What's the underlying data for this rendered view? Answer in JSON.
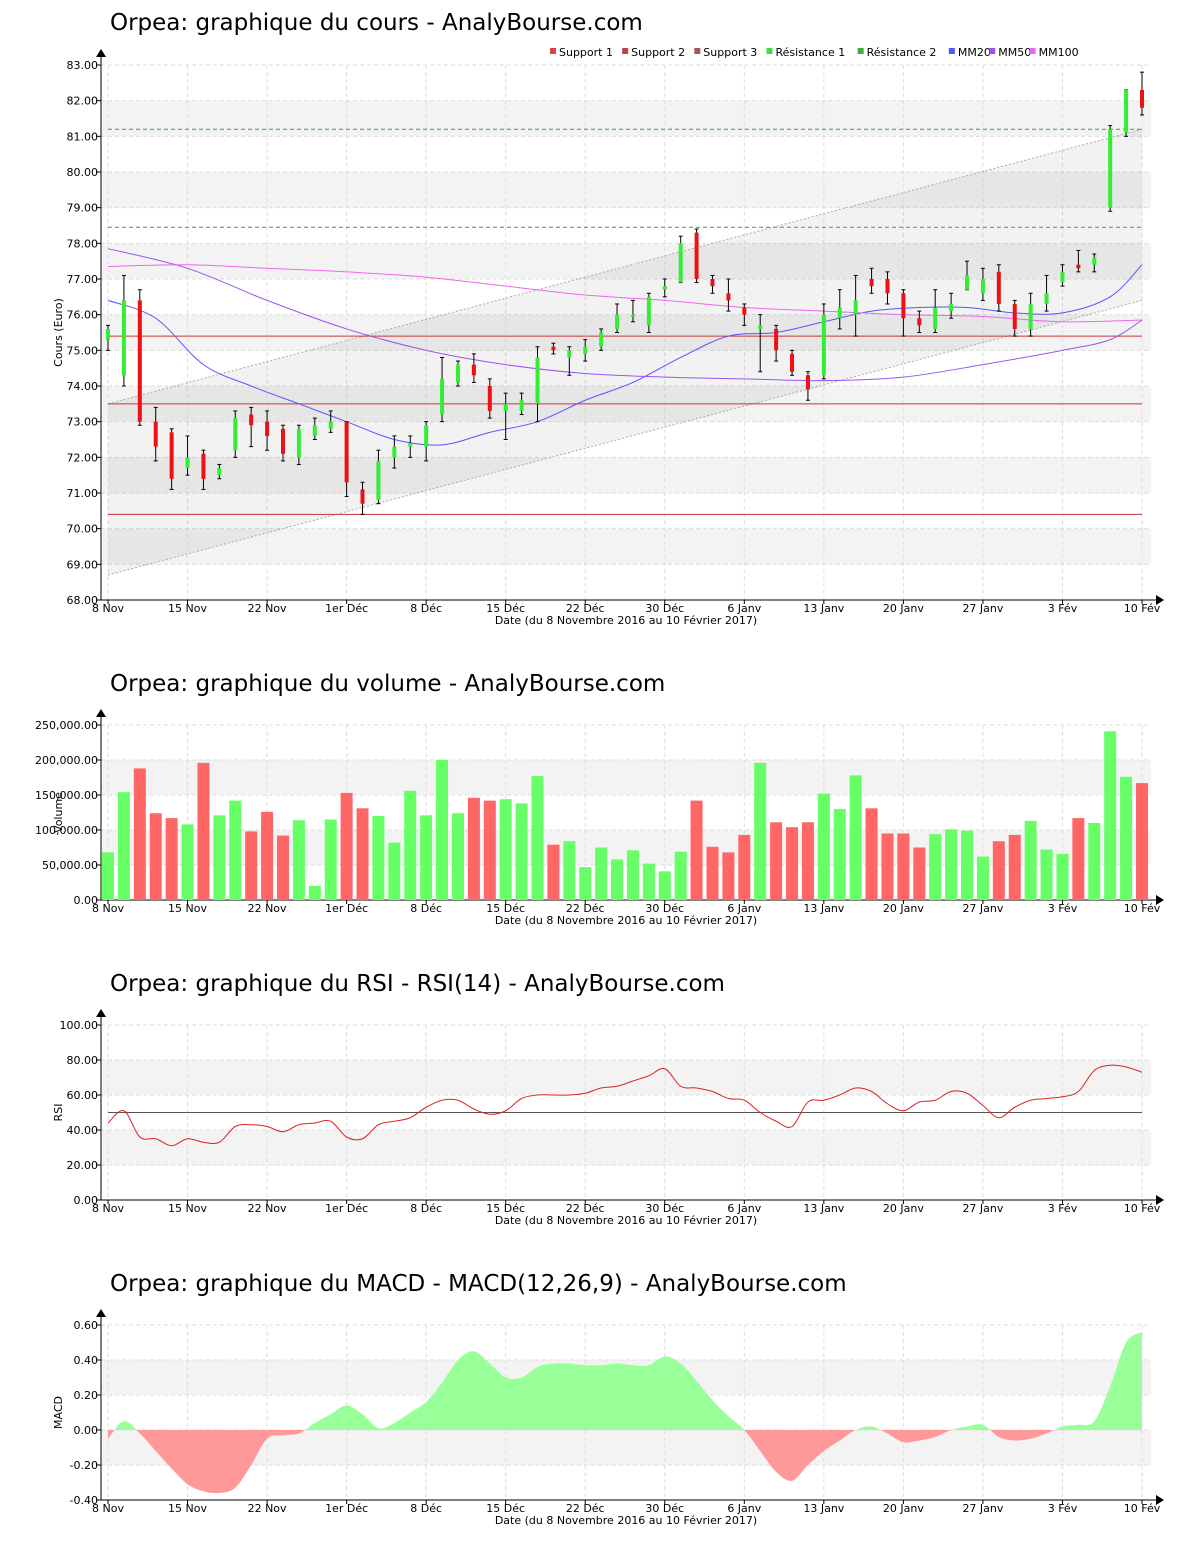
{
  "colors": {
    "up": "#33ee33",
    "down": "#ee1111",
    "vol_up": "#66ff66",
    "vol_down": "#ff6666",
    "support": "#cc3333",
    "resistance": "#33aa33",
    "mm20": "#5555ff",
    "mm50": "#9955ee",
    "mm100": "#ee66ee",
    "rsi": "#dd2222",
    "macd_pos": "#99ff99",
    "macd_neg": "#ff9999"
  },
  "date_axis": {
    "labels": [
      "8 Nov",
      "15 Nov",
      "22 Nov",
      "1er Déc",
      "8 Déc",
      "15 Déc",
      "22 Déc",
      "30 Déc",
      "6 Janv",
      "13 Janv",
      "20 Janv",
      "27 Janv",
      "3 Fév",
      "10 Fév"
    ],
    "label_index": [
      0,
      5,
      10,
      15,
      20,
      25,
      30,
      35,
      40,
      45,
      50,
      55,
      60,
      65
    ],
    "caption": "Date (du 8 Novembre 2016 au 10 Février 2017)",
    "dates": [
      "8 Nov",
      "9 Nov",
      "10 Nov",
      "11 Nov",
      "14 Nov",
      "15 Nov",
      "16 Nov",
      "17 Nov",
      "18 Nov",
      "21 Nov",
      "22 Nov",
      "23 Nov",
      "24 Nov",
      "25 Nov",
      "28 Nov",
      "1 Déc",
      "2 Déc",
      "5 Déc",
      "6 Déc",
      "7 Déc",
      "8 Déc",
      "9 Déc",
      "12 Déc",
      "13 Déc",
      "14 Déc",
      "15 Déc",
      "16 Déc",
      "19 Déc",
      "20 Déc",
      "21 Déc",
      "22 Déc",
      "23 Déc",
      "27 Déc",
      "28 Déc",
      "29 Déc",
      "30 Déc",
      "2 Janv",
      "3 Janv",
      "4 Janv",
      "5 Janv",
      "6 Janv",
      "9 Janv",
      "10 Janv",
      "11 Janv",
      "12 Janv",
      "13 Janv",
      "16 Janv",
      "17 Janv",
      "18 Janv",
      "19 Janv",
      "20 Janv",
      "23 Janv",
      "24 Janv",
      "25 Janv",
      "26 Janv",
      "27 Janv",
      "30 Janv",
      "31 Janv",
      "1 Fév",
      "2 Fév",
      "3 Fév",
      "6 Fév",
      "7 Fév",
      "8 Fév",
      "9 Fév",
      "10 Fév"
    ]
  },
  "price_panel": {
    "title": "Orpea: graphique du cours - AnalyBourse.com",
    "ylabel": "Cours (Euro)",
    "ticks": [
      "68.00",
      "69.00",
      "70.00",
      "71.00",
      "72.00",
      "73.00",
      "74.00",
      "75.00",
      "76.00",
      "77.00",
      "78.00",
      "79.00",
      "80.00",
      "81.00",
      "82.00",
      "83.00"
    ],
    "legend": [
      {
        "label": "Support 1",
        "color": "#dd4444"
      },
      {
        "label": "Support 2",
        "color": "#bb4444"
      },
      {
        "label": "Support 3",
        "color": "#aa5555"
      },
      {
        "label": "Résistance 1",
        "color": "#44dd44"
      },
      {
        "label": "Résistance 2",
        "color": "#44aa44"
      },
      {
        "label": "MM20",
        "color": "#5555ff"
      },
      {
        "label": "MM50",
        "color": "#9955ee"
      },
      {
        "label": "MM100",
        "color": "#ee66ee"
      }
    ]
  },
  "volume_panel": {
    "title": "Orpea: graphique du volume - AnalyBourse.com",
    "ylabel": "Volume",
    "ticks": [
      "0.00",
      "50,000.00",
      "100,000.00",
      "150,000.00",
      "200,000.00",
      "250,000.00"
    ]
  },
  "rsi_panel": {
    "title": "Orpea: graphique du RSI - RSI(14) - AnalyBourse.com",
    "ylabel": "RSI",
    "ticks": [
      "0.00",
      "20.00",
      "40.00",
      "60.00",
      "80.00",
      "100.00"
    ]
  },
  "macd_panel": {
    "title": "Orpea: graphique du MACD - MACD(12,26,9) - AnalyBourse.com",
    "ylabel": "MACD",
    "ticks": [
      "-0.40",
      "-0.20",
      "0.00",
      "0.20",
      "0.40",
      "0.60"
    ]
  },
  "chart_data": [
    {
      "type": "candlestick",
      "title": "Orpea: graphique du cours - AnalyBourse.com",
      "ylabel": "Cours (Euro)",
      "xlabel": "Date (du 8 Novembre 2016 au 10 Février 2017)",
      "ylim": [
        68,
        83
      ],
      "support_levels": [
        75.4,
        73.5,
        70.4
      ],
      "resistance_levels": [
        81.2,
        78.45
      ],
      "channel": {
        "upper": [
          73.5,
          81.2
        ],
        "lower": [
          68.7,
          76.4
        ]
      },
      "candles": [
        [
          75.3,
          75.6,
          75.7,
          75.0
        ],
        [
          74.3,
          76.4,
          77.1,
          74.0
        ],
        [
          76.4,
          73.0,
          76.7,
          72.9
        ],
        [
          73.0,
          72.3,
          73.4,
          71.9
        ],
        [
          72.7,
          71.4,
          72.8,
          71.1
        ],
        [
          71.7,
          72.0,
          72.6,
          71.5
        ],
        [
          72.1,
          71.4,
          72.2,
          71.1
        ],
        [
          71.5,
          71.7,
          71.8,
          71.4
        ],
        [
          72.2,
          73.1,
          73.3,
          72.0
        ],
        [
          73.2,
          72.9,
          73.4,
          72.3
        ],
        [
          73.0,
          72.6,
          73.3,
          72.2
        ],
        [
          72.8,
          72.1,
          72.9,
          71.9
        ],
        [
          72.0,
          72.8,
          72.9,
          71.8
        ],
        [
          72.6,
          72.9,
          73.1,
          72.5
        ],
        [
          72.8,
          73.0,
          73.3,
          72.7
        ],
        [
          73.0,
          71.3,
          73.0,
          70.9
        ],
        [
          71.1,
          70.7,
          71.3,
          70.4
        ],
        [
          70.8,
          71.9,
          72.2,
          70.7
        ],
        [
          72.0,
          72.3,
          72.6,
          71.7
        ],
        [
          72.3,
          72.4,
          72.6,
          72.0
        ],
        [
          72.3,
          72.9,
          73.0,
          71.9
        ],
        [
          73.2,
          74.2,
          74.8,
          73.0
        ],
        [
          74.1,
          74.6,
          74.7,
          74.0
        ],
        [
          74.6,
          74.3,
          74.9,
          74.1
        ],
        [
          74.0,
          73.3,
          74.2,
          73.1
        ],
        [
          73.3,
          73.5,
          73.8,
          72.5
        ],
        [
          73.3,
          73.6,
          73.8,
          73.2
        ],
        [
          73.5,
          74.8,
          75.1,
          73.0
        ],
        [
          75.1,
          75.0,
          75.2,
          74.9
        ],
        [
          74.8,
          75.0,
          75.1,
          74.3
        ],
        [
          74.9,
          75.1,
          75.3,
          74.7
        ],
        [
          75.1,
          75.5,
          75.6,
          75.0
        ],
        [
          75.6,
          76.0,
          76.3,
          75.5
        ],
        [
          76.0,
          76.0,
          76.4,
          75.8
        ],
        [
          75.7,
          76.5,
          76.6,
          75.5
        ],
        [
          76.7,
          76.8,
          77.0,
          76.5
        ],
        [
          76.9,
          78.0,
          78.2,
          76.9
        ],
        [
          78.3,
          77.0,
          78.4,
          76.9
        ],
        [
          77.0,
          76.8,
          77.1,
          76.6
        ],
        [
          76.6,
          76.4,
          77.0,
          76.1
        ],
        [
          76.2,
          76.0,
          76.3,
          75.7
        ],
        [
          75.6,
          75.7,
          76.0,
          74.4
        ],
        [
          75.6,
          75.0,
          75.7,
          74.7
        ],
        [
          74.9,
          74.4,
          75.0,
          74.3
        ],
        [
          74.3,
          73.9,
          74.4,
          73.6
        ],
        [
          74.3,
          76.0,
          76.3,
          74.2
        ],
        [
          75.9,
          76.2,
          76.7,
          75.6
        ],
        [
          76.0,
          76.4,
          77.1,
          75.4
        ],
        [
          77.0,
          76.8,
          77.3,
          76.6
        ],
        [
          77.0,
          76.6,
          77.2,
          76.3
        ],
        [
          76.6,
          75.9,
          76.7,
          75.4
        ],
        [
          75.9,
          75.7,
          76.1,
          75.5
        ],
        [
          75.6,
          76.2,
          76.7,
          75.5
        ],
        [
          76.1,
          76.3,
          76.6,
          75.9
        ],
        [
          76.7,
          77.1,
          77.5,
          76.7
        ],
        [
          76.6,
          77.0,
          77.3,
          76.4
        ],
        [
          77.2,
          76.3,
          77.4,
          76.1
        ],
        [
          76.3,
          75.6,
          76.4,
          75.4
        ],
        [
          75.6,
          76.3,
          76.6,
          75.4
        ],
        [
          76.3,
          76.6,
          77.1,
          76.1
        ],
        [
          76.9,
          77.2,
          77.4,
          76.8
        ],
        [
          77.4,
          77.3,
          77.8,
          77.2
        ],
        [
          77.4,
          77.6,
          77.7,
          77.2
        ],
        [
          79.0,
          81.2,
          81.3,
          78.9
        ],
        [
          81.1,
          82.3,
          82.3,
          81.0
        ],
        [
          82.3,
          81.8,
          82.8,
          81.6
        ]
      ],
      "series": [
        {
          "name": "MM20",
          "x": [
            0,
            3,
            6,
            9,
            12,
            15,
            18,
            21,
            24,
            27,
            30,
            33,
            36,
            39,
            42,
            45,
            48,
            51,
            54,
            57,
            60,
            63,
            65
          ],
          "values": [
            76.4,
            75.9,
            74.6,
            74.0,
            73.5,
            73.0,
            72.5,
            72.35,
            72.7,
            73.0,
            73.6,
            74.1,
            74.8,
            75.4,
            75.5,
            75.8,
            76.1,
            76.2,
            76.2,
            76.05,
            76.05,
            76.5,
            77.4
          ]
        },
        {
          "name": "MM50",
          "x": [
            0,
            5,
            10,
            15,
            20,
            25,
            30,
            35,
            40,
            45,
            50,
            55,
            60,
            63,
            65
          ],
          "values": [
            77.85,
            77.3,
            76.4,
            75.6,
            75.0,
            74.6,
            74.35,
            74.25,
            74.2,
            74.15,
            74.25,
            74.6,
            75.0,
            75.3,
            75.85
          ]
        },
        {
          "name": "MM100",
          "x": [
            0,
            5,
            10,
            15,
            20,
            25,
            30,
            35,
            40,
            45,
            50,
            55,
            60,
            65
          ],
          "values": [
            77.35,
            77.4,
            77.3,
            77.2,
            77.05,
            76.8,
            76.55,
            76.4,
            76.2,
            76.1,
            76.0,
            75.95,
            75.8,
            75.85
          ]
        }
      ]
    },
    {
      "type": "bar",
      "title": "Orpea: graphique du volume - AnalyBourse.com",
      "ylabel": "Volume",
      "xlabel": "Date (du 8 Novembre 2016 au 10 Février 2017)",
      "ylim": [
        0,
        250000
      ],
      "values": [
        68000,
        154000,
        188000,
        124000,
        117000,
        108000,
        196000,
        121000,
        142000,
        98000,
        126000,
        92000,
        114000,
        20000,
        115000,
        153000,
        131000,
        120000,
        82000,
        156000,
        121000,
        200000,
        124000,
        146000,
        142000,
        144000,
        138000,
        177000,
        79000,
        84000,
        47000,
        75000,
        58000,
        71000,
        52000,
        41000,
        69000,
        142000,
        76000,
        68000,
        93000,
        196000,
        111000,
        104000,
        111000,
        152000,
        130000,
        178000,
        131000,
        95000,
        95000,
        75000,
        94000,
        101000,
        99000,
        62000,
        84000,
        93000,
        113000,
        72000,
        66000,
        117000,
        110000,
        241000,
        176000,
        167000
      ]
    },
    {
      "type": "line",
      "title": "Orpea: graphique du RSI - RSI(14) - AnalyBourse.com",
      "ylabel": "RSI",
      "xlabel": "Date (du 8 Novembre 2016 au 10 Février 2017)",
      "ylim": [
        0,
        100
      ],
      "reference_line": 50,
      "series": [
        {
          "name": "RSI(14)",
          "values": [
            44,
            51,
            36,
            35,
            31,
            35,
            33,
            33,
            42,
            43,
            42,
            39,
            43,
            44,
            45,
            36,
            35,
            43,
            45,
            47,
            53,
            57,
            57,
            52,
            49,
            51,
            58,
            60,
            60,
            60,
            61,
            64,
            65,
            68,
            71,
            75,
            65,
            64,
            62,
            58,
            57,
            50,
            45,
            42,
            56,
            57,
            60,
            64,
            62,
            55,
            51,
            56,
            57,
            62,
            61,
            54,
            47,
            53,
            57,
            58,
            59,
            62,
            74,
            77,
            76,
            73
          ]
        }
      ]
    },
    {
      "type": "area",
      "title": "Orpea: graphique du MACD - MACD(12,26,9) - AnalyBourse.com",
      "ylabel": "MACD",
      "xlabel": "Date (du 8 Novembre 2016 au 10 Février 2017)",
      "ylim": [
        -0.4,
        0.6
      ],
      "series": [
        {
          "name": "MACD(12,26,9)",
          "values": [
            -0.05,
            0.05,
            -0.02,
            -0.12,
            -0.22,
            -0.31,
            -0.35,
            -0.36,
            -0.33,
            -0.2,
            -0.05,
            -0.03,
            -0.02,
            0.04,
            0.09,
            0.14,
            0.09,
            0.01,
            0.04,
            0.1,
            0.16,
            0.27,
            0.4,
            0.45,
            0.38,
            0.3,
            0.3,
            0.36,
            0.38,
            0.38,
            0.37,
            0.37,
            0.38,
            0.37,
            0.37,
            0.42,
            0.38,
            0.28,
            0.17,
            0.08,
            0.0,
            -0.12,
            -0.24,
            -0.29,
            -0.2,
            -0.12,
            -0.06,
            0.0,
            0.02,
            -0.02,
            -0.07,
            -0.06,
            -0.04,
            0.0,
            0.02,
            0.03,
            -0.04,
            -0.06,
            -0.05,
            -0.02,
            0.02,
            0.03,
            0.05,
            0.25,
            0.5,
            0.56
          ]
        }
      ]
    }
  ]
}
